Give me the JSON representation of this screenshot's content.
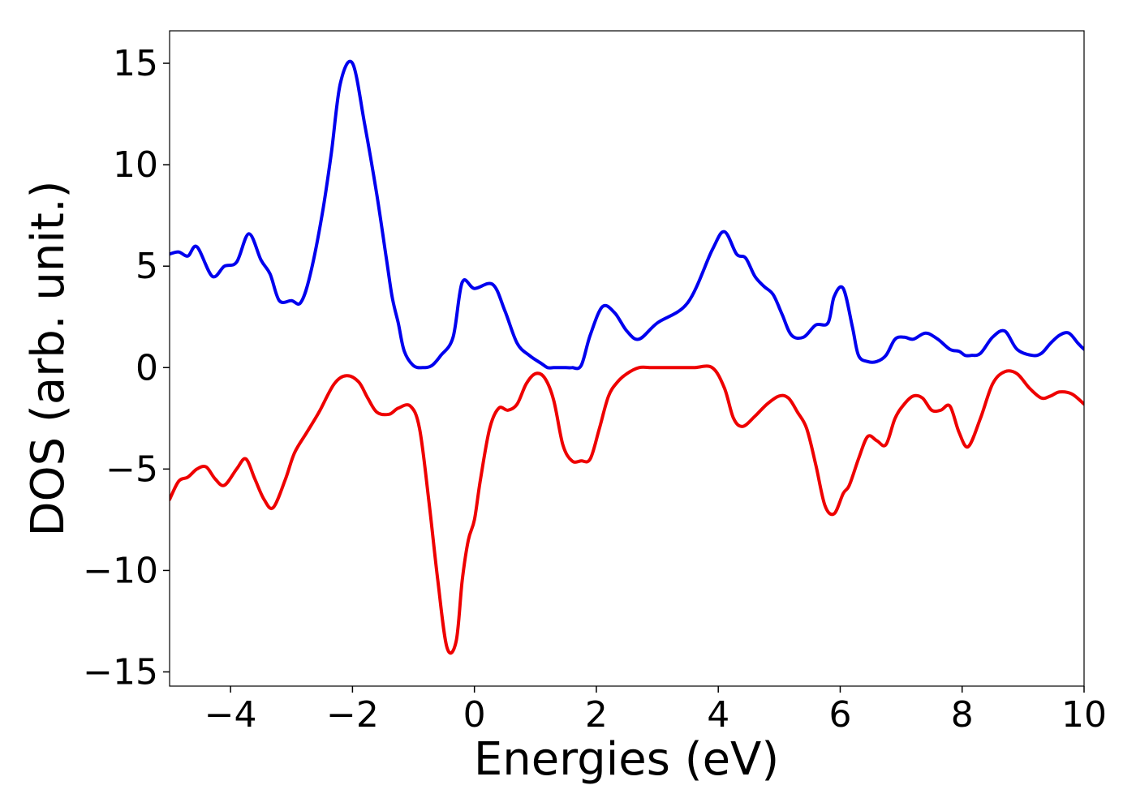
{
  "chart_data": {
    "type": "line",
    "xlabel": "Energies (eV)",
    "ylabel": "DOS (arb. unit.)",
    "xlim": [
      -5,
      10
    ],
    "ylim": [
      -15.7,
      16.6
    ],
    "xticks": [
      -4,
      -2,
      0,
      2,
      4,
      6,
      8,
      10
    ],
    "yticks": [
      -15,
      -10,
      -5,
      0,
      5,
      10,
      15
    ],
    "xtick_labels": [
      "−4",
      "−2",
      "0",
      "2",
      "4",
      "6",
      "8",
      "10"
    ],
    "ytick_labels": [
      "−15",
      "−10",
      "−5",
      "0",
      "5",
      "10",
      "15"
    ],
    "grid": false,
    "series": [
      {
        "color": "#0000ee",
        "x": [
          -5.0,
          -4.85,
          -4.7,
          -4.55,
          -4.3,
          -4.1,
          -3.9,
          -3.7,
          -3.5,
          -3.35,
          -3.2,
          -3.0,
          -2.85,
          -2.7,
          -2.5,
          -2.35,
          -2.2,
          -2.0,
          -1.8,
          -1.6,
          -1.45,
          -1.35,
          -1.25,
          -1.15,
          -1.0,
          -0.85,
          -0.7,
          -0.55,
          -0.35,
          -0.2,
          0.0,
          0.3,
          0.5,
          0.7,
          0.9,
          1.1,
          1.2,
          1.3,
          1.4,
          1.5,
          1.6,
          1.75,
          1.9,
          2.1,
          2.3,
          2.5,
          2.7,
          3.0,
          3.5,
          3.9,
          4.1,
          4.3,
          4.45,
          4.6,
          4.75,
          4.9,
          5.05,
          5.2,
          5.4,
          5.6,
          5.8,
          5.9,
          6.05,
          6.2,
          6.3,
          6.45,
          6.6,
          6.75,
          6.9,
          7.05,
          7.2,
          7.4,
          7.6,
          7.8,
          7.95,
          8.05,
          8.15,
          8.3,
          8.5,
          8.7,
          8.9,
          9.15,
          9.3,
          9.45,
          9.6,
          9.75,
          9.9,
          10.0
        ],
        "values": [
          5.6,
          5.7,
          5.5,
          5.95,
          4.5,
          5.0,
          5.2,
          6.6,
          5.3,
          4.6,
          3.3,
          3.3,
          3.2,
          4.5,
          7.5,
          10.5,
          14.0,
          15.0,
          12.0,
          8.5,
          5.5,
          3.5,
          2.2,
          0.8,
          0.1,
          0.0,
          0.1,
          0.6,
          1.5,
          4.2,
          3.9,
          4.1,
          2.8,
          1.2,
          0.6,
          0.2,
          0.0,
          0.0,
          0.0,
          0.0,
          0.0,
          0.1,
          1.6,
          3.0,
          2.7,
          1.8,
          1.4,
          2.2,
          3.2,
          5.8,
          6.7,
          5.6,
          5.4,
          4.5,
          4.0,
          3.6,
          2.6,
          1.6,
          1.5,
          2.1,
          2.2,
          3.5,
          3.9,
          2.0,
          0.6,
          0.3,
          0.3,
          0.6,
          1.4,
          1.5,
          1.4,
          1.7,
          1.4,
          0.9,
          0.8,
          0.6,
          0.6,
          0.7,
          1.5,
          1.8,
          0.9,
          0.6,
          0.7,
          1.2,
          1.6,
          1.7,
          1.2,
          0.9
        ]
      },
      {
        "color": "#ee0000",
        "x": [
          -5.0,
          -4.85,
          -4.7,
          -4.55,
          -4.4,
          -4.25,
          -4.1,
          -3.9,
          -3.75,
          -3.6,
          -3.45,
          -3.3,
          -3.1,
          -2.95,
          -2.75,
          -2.55,
          -2.3,
          -2.1,
          -1.9,
          -1.75,
          -1.6,
          -1.4,
          -1.25,
          -1.05,
          -0.9,
          -0.75,
          -0.6,
          -0.45,
          -0.3,
          -0.2,
          -0.1,
          0.0,
          0.1,
          0.25,
          0.4,
          0.55,
          0.7,
          0.85,
          1.0,
          1.15,
          1.3,
          1.45,
          1.6,
          1.75,
          1.9,
          2.05,
          2.2,
          2.35,
          2.5,
          2.7,
          2.9,
          3.1,
          3.3,
          3.6,
          3.9,
          4.1,
          4.25,
          4.4,
          4.6,
          4.8,
          5.0,
          5.15,
          5.3,
          5.45,
          5.6,
          5.75,
          5.9,
          6.05,
          6.15,
          6.3,
          6.45,
          6.6,
          6.75,
          6.9,
          7.05,
          7.2,
          7.35,
          7.5,
          7.65,
          7.8,
          7.95,
          8.1,
          8.3,
          8.5,
          8.7,
          8.9,
          9.1,
          9.3,
          9.45,
          9.6,
          9.8,
          10.0
        ],
        "values": [
          -6.5,
          -5.6,
          -5.4,
          -5.0,
          -4.9,
          -5.5,
          -5.8,
          -5.0,
          -4.5,
          -5.5,
          -6.5,
          -6.9,
          -5.5,
          -4.2,
          -3.2,
          -2.2,
          -0.8,
          -0.4,
          -0.7,
          -1.5,
          -2.2,
          -2.3,
          -2.0,
          -1.9,
          -3.0,
          -6.5,
          -10.5,
          -13.8,
          -13.5,
          -10.5,
          -8.5,
          -7.5,
          -5.5,
          -3.0,
          -2.0,
          -2.1,
          -1.8,
          -0.8,
          -0.3,
          -0.5,
          -1.6,
          -3.8,
          -4.6,
          -4.6,
          -4.5,
          -3.0,
          -1.4,
          -0.7,
          -0.3,
          0.0,
          0.0,
          0.0,
          0.0,
          0.0,
          0.0,
          -1.0,
          -2.5,
          -2.9,
          -2.4,
          -1.8,
          -1.4,
          -1.5,
          -2.2,
          -3.0,
          -4.8,
          -6.8,
          -7.2,
          -6.2,
          -5.8,
          -4.5,
          -3.4,
          -3.6,
          -3.8,
          -2.5,
          -1.8,
          -1.4,
          -1.5,
          -2.1,
          -2.1,
          -1.9,
          -3.2,
          -3.9,
          -2.5,
          -0.8,
          -0.2,
          -0.3,
          -1.0,
          -1.5,
          -1.4,
          -1.2,
          -1.3,
          -1.8
        ]
      }
    ]
  }
}
